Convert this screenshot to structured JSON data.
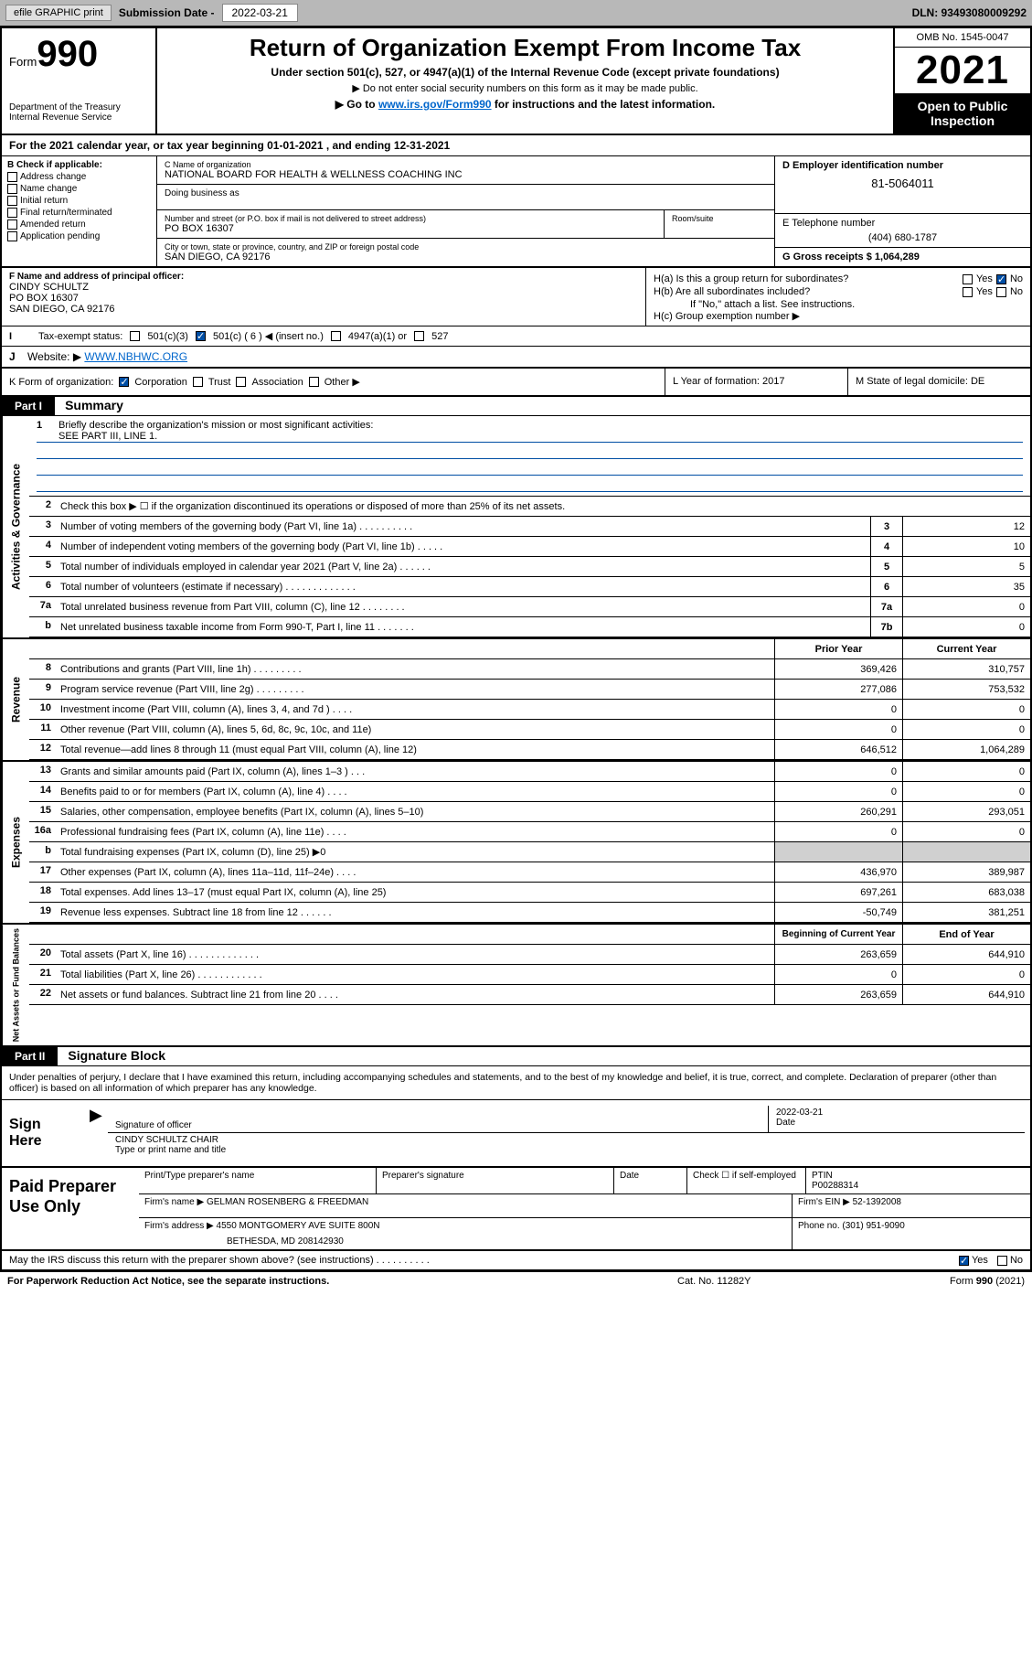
{
  "top_bar": {
    "efile_btn": "efile GRAPHIC print",
    "sub_label": "Submission Date - ",
    "sub_date": "2022-03-21",
    "dln": "DLN: 93493080009292"
  },
  "header": {
    "form_word": "Form",
    "form_num": "990",
    "dept": "Department of the Treasury Internal Revenue Service",
    "title": "Return of Organization Exempt From Income Tax",
    "sub1": "Under section 501(c), 527, or 4947(a)(1) of the Internal Revenue Code (except private foundations)",
    "sub2": "▶ Do not enter social security numbers on this form as it may be made public.",
    "sub3_pre": "▶ Go to ",
    "sub3_link": "www.irs.gov/Form990",
    "sub3_post": " for instructions and the latest information.",
    "omb": "OMB No. 1545-0047",
    "year": "2021",
    "inspect": "Open to Public Inspection"
  },
  "row_a": "For the 2021 calendar year, or tax year beginning 01-01-2021   , and ending 12-31-2021",
  "b": {
    "label": "B Check if applicable:",
    "opts": [
      "Address change",
      "Name change",
      "Initial return",
      "Final return/terminated",
      "Amended return",
      "Application pending"
    ]
  },
  "c": {
    "name_hint": "C Name of organization",
    "name": "NATIONAL BOARD FOR HEALTH & WELLNESS COACHING INC",
    "dba_hint": "Doing business as",
    "addr_hint": "Number and street (or P.O. box if mail is not delivered to street address)",
    "addr": "PO BOX 16307",
    "room_hint": "Room/suite",
    "city_hint": "City or town, state or province, country, and ZIP or foreign postal code",
    "city": "SAN DIEGO, CA  92176"
  },
  "d": {
    "ein_label": "D Employer identification number",
    "ein": "81-5064011",
    "tel_label": "E Telephone number",
    "tel": "(404) 680-1787",
    "gross_label": "G Gross receipts $ ",
    "gross": "1,064,289"
  },
  "f": {
    "label": "F Name and address of principal officer:",
    "name": "CINDY SCHULTZ",
    "addr1": "PO BOX 16307",
    "addr2": "SAN DIEGO, CA  92176"
  },
  "h": {
    "a": "H(a)  Is this a group return for subordinates?",
    "b": "H(b)  Are all subordinates included?",
    "b_note": "If \"No,\" attach a list. See instructions.",
    "c": "H(c)  Group exemption number ▶",
    "yes": "Yes",
    "no": "No"
  },
  "i": {
    "label": "Tax-exempt status:",
    "o1": "501(c)(3)",
    "o2": "501(c) ( 6 ) ◀ (insert no.)",
    "o3": "4947(a)(1) or",
    "o4": "527"
  },
  "j": {
    "label": "Website: ▶ ",
    "val": "WWW.NBHWC.ORG"
  },
  "k": {
    "label": "K Form of organization:",
    "o1": "Corporation",
    "o2": "Trust",
    "o3": "Association",
    "o4": "Other ▶"
  },
  "l": {
    "label": "L Year of formation: ",
    "val": "2017"
  },
  "m": {
    "label": "M State of legal domicile: ",
    "val": "DE"
  },
  "part1": {
    "header": "Part I",
    "title": "Summary"
  },
  "mission": {
    "num": "1",
    "text": "Briefly describe the organization's mission or most significant activities:",
    "val": "SEE PART III, LINE 1."
  },
  "gov_lines": [
    {
      "n": "2",
      "t": "Check this box ▶ ☐  if the organization discontinued its operations or disposed of more than 25% of its net assets."
    },
    {
      "n": "3",
      "t": "Number of voting members of the governing body (Part VI, line 1a)   .    .    .    .    .    .    .    .    .    .",
      "ln": "3",
      "v": "12"
    },
    {
      "n": "4",
      "t": "Number of independent voting members of the governing body (Part VI, line 1b)   .    .    .    .    .",
      "ln": "4",
      "v": "10"
    },
    {
      "n": "5",
      "t": "Total number of individuals employed in calendar year 2021 (Part V, line 2a)   .    .    .    .    .    .",
      "ln": "5",
      "v": "5"
    },
    {
      "n": "6",
      "t": "Total number of volunteers (estimate if necessary)   .    .    .    .    .    .    .    .    .    .    .    .    .",
      "ln": "6",
      "v": "35"
    },
    {
      "n": "7a",
      "t": "Total unrelated business revenue from Part VIII, column (C), line 12   .    .    .    .    .    .    .    .",
      "ln": "7a",
      "v": "0"
    },
    {
      "n": "b",
      "t": "Net unrelated business taxable income from Form 990-T, Part I, line 11   .    .    .    .    .    .    .",
      "ln": "7b",
      "v": "0"
    }
  ],
  "col_headers": {
    "prior": "Prior Year",
    "current": "Current Year"
  },
  "rev_lines": [
    {
      "n": "8",
      "t": "Contributions and grants (Part VIII, line 1h)   .    .    .    .    .    .    .    .    .",
      "p": "369,426",
      "c": "310,757"
    },
    {
      "n": "9",
      "t": "Program service revenue (Part VIII, line 2g)   .    .    .    .    .    .    .    .    .",
      "p": "277,086",
      "c": "753,532"
    },
    {
      "n": "10",
      "t": "Investment income (Part VIII, column (A), lines 3, 4, and 7d )   .    .    .    .",
      "p": "0",
      "c": "0"
    },
    {
      "n": "11",
      "t": "Other revenue (Part VIII, column (A), lines 5, 6d, 8c, 9c, 10c, and 11e)",
      "p": "0",
      "c": "0"
    },
    {
      "n": "12",
      "t": "Total revenue—add lines 8 through 11 (must equal Part VIII, column (A), line 12)",
      "p": "646,512",
      "c": "1,064,289"
    }
  ],
  "exp_lines": [
    {
      "n": "13",
      "t": "Grants and similar amounts paid (Part IX, column (A), lines 1–3 )   .    .    .",
      "p": "0",
      "c": "0"
    },
    {
      "n": "14",
      "t": "Benefits paid to or for members (Part IX, column (A), line 4)   .    .    .    .",
      "p": "0",
      "c": "0"
    },
    {
      "n": "15",
      "t": "Salaries, other compensation, employee benefits (Part IX, column (A), lines 5–10)",
      "p": "260,291",
      "c": "293,051"
    },
    {
      "n": "16a",
      "t": "Professional fundraising fees (Part IX, column (A), line 11e)   .    .    .    .",
      "p": "0",
      "c": "0"
    },
    {
      "n": "b",
      "t": "Total fundraising expenses (Part IX, column (D), line 25) ▶0",
      "shaded": true
    },
    {
      "n": "17",
      "t": "Other expenses (Part IX, column (A), lines 11a–11d, 11f–24e)   .    .    .    .",
      "p": "436,970",
      "c": "389,987"
    },
    {
      "n": "18",
      "t": "Total expenses. Add lines 13–17 (must equal Part IX, column (A), line 25)",
      "p": "697,261",
      "c": "683,038"
    },
    {
      "n": "19",
      "t": "Revenue less expenses. Subtract line 18 from line 12   .    .    .    .    .    .",
      "p": "-50,749",
      "c": "381,251"
    }
  ],
  "net_headers": {
    "beg": "Beginning of Current Year",
    "end": "End of Year"
  },
  "net_lines": [
    {
      "n": "20",
      "t": "Total assets (Part X, line 16)   .    .    .    .    .    .    .    .    .    .    .    .    .",
      "p": "263,659",
      "c": "644,910"
    },
    {
      "n": "21",
      "t": "Total liabilities (Part X, line 26)   .    .    .    .    .    .    .    .    .    .    .    .",
      "p": "0",
      "c": "0"
    },
    {
      "n": "22",
      "t": "Net assets or fund balances. Subtract line 21 from line 20   .    .    .    .",
      "p": "263,659",
      "c": "644,910"
    }
  ],
  "vert": {
    "gov": "Activities & Governance",
    "rev": "Revenue",
    "exp": "Expenses",
    "net": "Net Assets or Fund Balances"
  },
  "part2": {
    "header": "Part II",
    "title": "Signature Block"
  },
  "sig_decl": "Under penalties of perjury, I declare that I have examined this return, including accompanying schedules and statements, and to the best of my knowledge and belief, it is true, correct, and complete. Declaration of preparer (other than officer) is based on all information of which preparer has any knowledge.",
  "sign": {
    "label": "Sign Here",
    "sig_of": "Signature of officer",
    "date_label": "Date",
    "date": "2022-03-21",
    "name": "CINDY SCHULTZ  CHAIR",
    "name_hint": "Type or print name and title"
  },
  "prep": {
    "label": "Paid Preparer Use Only",
    "h1": "Print/Type preparer's name",
    "h2": "Preparer's signature",
    "h3": "Date",
    "h4_pre": "Check ☐ if self-employed",
    "h5": "PTIN",
    "ptin": "P00288314",
    "firm_name_l": "Firm's name      ▶ ",
    "firm_name": "GELMAN ROSENBERG & FREEDMAN",
    "firm_ein_l": "Firm's EIN ▶ ",
    "firm_ein": "52-1392008",
    "firm_addr_l": "Firm's address ▶ ",
    "firm_addr": "4550 MONTGOMERY AVE SUITE 800N",
    "firm_city": "BETHESDA, MD  208142930",
    "phone_l": "Phone no. ",
    "phone": "(301) 951-9090"
  },
  "may_irs": {
    "text": "May the IRS discuss this return with the preparer shown above? (see instructions)   .    .    .    .    .    .    .    .    .    .",
    "yes": "Yes",
    "no": "No"
  },
  "footer": {
    "left": "For Paperwork Reduction Act Notice, see the separate instructions.",
    "mid": "Cat. No. 11282Y",
    "right": "Form 990 (2021)"
  }
}
